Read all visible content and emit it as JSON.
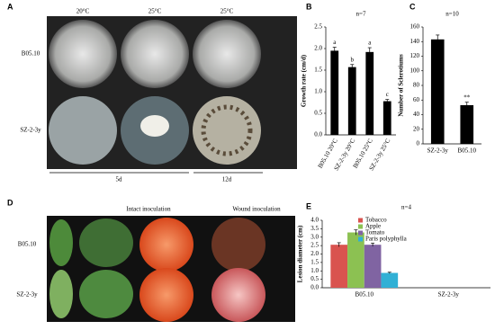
{
  "panel_a": {
    "letter": "A",
    "columns": [
      "20°C",
      "25°C",
      "25°C"
    ],
    "rows": [
      "B05.10",
      "SZ-2-3y"
    ],
    "durations": [
      "5d",
      "12d"
    ]
  },
  "panel_d": {
    "letter": "D",
    "groups": [
      "Intact inoculation",
      "Wound inoculation"
    ],
    "rows": [
      "B05.10",
      "SZ-2-3y"
    ]
  },
  "chart_data": [
    {
      "type": "bar",
      "letter": "B",
      "annotation": "n=7",
      "y_label": "Growth rate (cm/d)",
      "categories": [
        "B05.10 20°C",
        "SZ-2-3y 20°C",
        "B05.10 25°C",
        "SZ-2-3y 25°C"
      ],
      "values": [
        1.95,
        1.57,
        1.92,
        0.78
      ],
      "errors": [
        0.08,
        0.06,
        0.1,
        0.04
      ],
      "significance": [
        "a",
        "b",
        "a",
        "c"
      ],
      "color": "#000000",
      "ylim": [
        0,
        2.5
      ],
      "yticks": [
        {
          "value": 0,
          "label": "0.0"
        },
        {
          "value": 0.5,
          "label": "0.5"
        },
        {
          "value": 1,
          "label": "1.0"
        },
        {
          "value": 1.5,
          "label": "1.5"
        },
        {
          "value": 2,
          "label": "2.0"
        },
        {
          "value": 2.5,
          "label": "2.5"
        }
      ]
    },
    {
      "type": "bar",
      "letter": "C",
      "annotation": "n=10",
      "y_label": "Number of Sclerotiums",
      "categories": [
        "SZ-2-3y",
        "B05.10"
      ],
      "values": [
        143,
        53
      ],
      "errors": [
        6,
        4
      ],
      "significance": [
        null,
        "**"
      ],
      "color": "#000000",
      "ylim": [
        0,
        160
      ],
      "yticks": [
        0,
        20,
        40,
        60,
        80,
        100,
        120,
        140,
        160
      ]
    },
    {
      "type": "grouped_bar",
      "letter": "E",
      "annotation": "n=4",
      "y_label": "Lesion diameter (cm)",
      "categories": [
        "B05.10",
        "SZ-2-3y"
      ],
      "legend": "upper left",
      "ylim": [
        0,
        4
      ],
      "yticks": [
        {
          "value": 0,
          "label": "0.0"
        },
        {
          "value": 0.5,
          "label": "0.5"
        },
        {
          "value": 1,
          "label": "1.0"
        },
        {
          "value": 1.5,
          "label": "1.5"
        },
        {
          "value": 2,
          "label": "2.0"
        },
        {
          "value": 2.5,
          "label": "2.5"
        },
        {
          "value": 3,
          "label": "3.0"
        },
        {
          "value": 3.5,
          "label": "3.5"
        },
        {
          "value": 4,
          "label": "4.0"
        }
      ],
      "series": [
        {
          "name": "Tobacco",
          "color": "#d9534f",
          "values": [
            2.55,
            0
          ],
          "errors": [
            0.12,
            null
          ]
        },
        {
          "name": "Apple",
          "color": "#8cc152",
          "values": [
            3.28,
            0
          ],
          "errors": [
            0.15,
            null
          ]
        },
        {
          "name": "Tomato",
          "color": "#8064a2",
          "values": [
            2.55,
            0
          ],
          "errors": [
            0.1,
            null
          ]
        },
        {
          "name": "Paris polyphylla",
          "color": "#31b0d5",
          "values": [
            0.88,
            0
          ],
          "errors": [
            0.04,
            null
          ]
        }
      ]
    }
  ]
}
